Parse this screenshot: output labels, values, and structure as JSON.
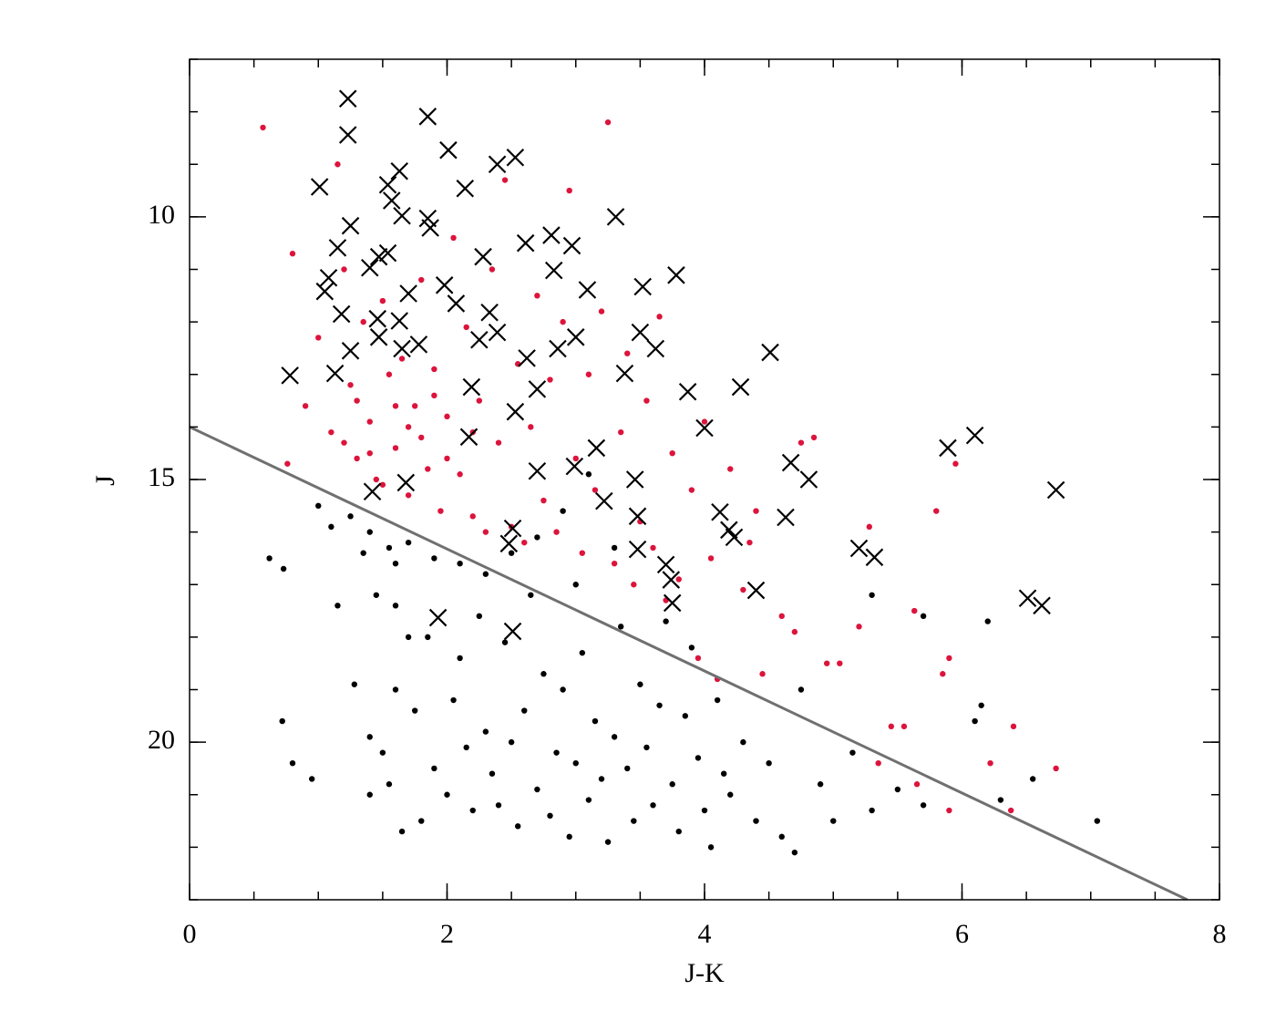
{
  "chart_data": {
    "type": "scatter",
    "xlabel": "J-K",
    "ylabel": "J",
    "xlim": [
      0,
      8
    ],
    "ylim": [
      23,
      7
    ],
    "xticks": [
      0,
      2,
      4,
      6,
      8
    ],
    "yticks": [
      10,
      15,
      20
    ],
    "xminor": 4,
    "yminor": 5,
    "series": [
      {
        "color": "#000000",
        "marker": "dot",
        "x": [
          0.62,
          0.73,
          0.72,
          0.8,
          0.95,
          1.15,
          1.28,
          1.0,
          1.1,
          1.25,
          1.4,
          1.55,
          1.7,
          1.9,
          2.1,
          2.3,
          1.35,
          1.6,
          1.45,
          1.6,
          1.7,
          1.75,
          1.8,
          1.65,
          1.5,
          1.4,
          1.55,
          1.9,
          2.0,
          2.05,
          2.1,
          2.15,
          2.2,
          2.25,
          2.3,
          2.35,
          2.4,
          2.45,
          2.5,
          2.55,
          2.6,
          2.65,
          2.7,
          2.75,
          2.8,
          2.85,
          2.9,
          2.95,
          3.0,
          3.05,
          3.1,
          3.15,
          3.2,
          3.25,
          3.3,
          3.35,
          3.4,
          3.45,
          3.5,
          3.55,
          3.6,
          3.65,
          3.7,
          3.75,
          3.8,
          3.85,
          3.9,
          3.95,
          4.0,
          4.05,
          4.1,
          4.15,
          4.2,
          4.3,
          4.4,
          4.5,
          4.6,
          4.7,
          4.75,
          4.9,
          5.0,
          5.15,
          5.3,
          5.5,
          5.7,
          5.7,
          6.1,
          6.2,
          6.15,
          6.3,
          6.55,
          7.05,
          5.3,
          2.5,
          2.7,
          2.9,
          3.1,
          3.3,
          1.85,
          1.4,
          1.6,
          3.0
        ],
        "values": [
          16.5,
          16.7,
          19.6,
          20.4,
          20.7,
          17.4,
          18.9,
          15.5,
          15.9,
          15.7,
          16.0,
          16.3,
          16.2,
          16.5,
          16.6,
          16.8,
          16.4,
          16.6,
          17.2,
          17.4,
          18.0,
          19.4,
          21.5,
          21.7,
          20.2,
          19.9,
          20.8,
          20.5,
          21.0,
          19.2,
          18.4,
          20.1,
          21.3,
          17.6,
          19.8,
          20.6,
          21.2,
          18.1,
          20.0,
          21.6,
          19.4,
          17.2,
          20.9,
          18.7,
          21.4,
          20.2,
          19.0,
          21.8,
          20.4,
          18.3,
          21.1,
          19.6,
          20.7,
          21.9,
          19.9,
          17.8,
          20.5,
          21.5,
          18.9,
          20.1,
          21.2,
          19.3,
          17.7,
          20.8,
          21.7,
          19.5,
          18.2,
          20.3,
          21.3,
          22.0,
          19.2,
          20.6,
          21.0,
          20.0,
          21.5,
          20.4,
          21.8,
          22.1,
          19.0,
          20.8,
          21.5,
          20.2,
          21.3,
          20.9,
          17.6,
          21.2,
          19.6,
          17.7,
          19.3,
          21.1,
          20.7,
          21.5,
          17.2,
          16.4,
          16.1,
          15.6,
          14.9,
          16.3,
          18.0,
          21.0,
          19.0,
          17.0
        ]
      },
      {
        "color": "#dc143c",
        "marker": "dot",
        "x": [
          0.57,
          0.8,
          0.76,
          0.9,
          1.0,
          1.1,
          1.15,
          1.2,
          1.25,
          1.3,
          1.35,
          1.4,
          1.45,
          1.5,
          1.55,
          1.6,
          1.65,
          1.7,
          1.75,
          1.8,
          1.85,
          1.9,
          1.95,
          2.0,
          2.05,
          2.1,
          2.15,
          2.2,
          2.25,
          2.3,
          2.35,
          2.4,
          2.45,
          2.5,
          2.55,
          2.6,
          2.65,
          2.7,
          2.75,
          2.8,
          2.85,
          2.9,
          2.95,
          3.0,
          3.05,
          3.1,
          3.15,
          3.2,
          3.25,
          3.3,
          3.35,
          3.4,
          3.45,
          3.5,
          3.55,
          3.6,
          3.65,
          3.7,
          3.75,
          3.8,
          3.9,
          3.95,
          4.0,
          4.05,
          4.1,
          4.2,
          4.3,
          4.35,
          4.4,
          4.45,
          4.6,
          4.7,
          4.75,
          4.85,
          4.95,
          5.05,
          5.2,
          5.28,
          5.35,
          5.45,
          5.55,
          5.65,
          5.63,
          5.8,
          5.85,
          5.9,
          5.95,
          5.9,
          6.22,
          6.38,
          6.4,
          6.73,
          1.2,
          1.4,
          1.6,
          1.8,
          2.0,
          1.3,
          1.5,
          1.7,
          1.9,
          2.2
        ],
        "values": [
          8.3,
          10.7,
          14.7,
          13.6,
          12.3,
          14.1,
          9.0,
          11.0,
          13.2,
          14.6,
          12.0,
          13.9,
          15.0,
          11.6,
          13.0,
          14.4,
          12.7,
          15.3,
          13.6,
          11.2,
          14.8,
          12.9,
          15.6,
          13.8,
          10.4,
          14.9,
          12.1,
          15.7,
          13.5,
          16.0,
          11.0,
          14.3,
          9.3,
          15.9,
          12.8,
          16.2,
          14.0,
          11.5,
          15.4,
          13.1,
          16.0,
          12.0,
          9.5,
          14.6,
          16.4,
          13.0,
          15.2,
          11.8,
          8.2,
          16.6,
          14.1,
          12.6,
          17.0,
          15.8,
          13.5,
          16.3,
          11.9,
          17.3,
          14.5,
          16.9,
          15.2,
          18.4,
          13.9,
          16.5,
          18.8,
          14.8,
          17.1,
          16.2,
          15.6,
          18.7,
          17.6,
          17.9,
          14.3,
          14.2,
          18.5,
          18.5,
          17.8,
          15.9,
          20.4,
          19.7,
          19.7,
          20.8,
          17.5,
          15.6,
          18.7,
          18.4,
          14.7,
          21.3,
          20.4,
          21.3,
          19.7,
          20.5,
          14.3,
          14.5,
          13.6,
          14.2,
          14.6,
          13.5,
          15.1,
          14.0,
          13.4,
          14.1
        ]
      },
      {
        "color": "#000000",
        "marker": "x",
        "x": [
          1.23,
          1.23,
          1.85,
          2.01,
          2.39,
          2.53,
          1.01,
          1.54,
          1.63,
          1.57,
          1.65,
          2.14,
          1.25,
          1.85,
          1.87,
          3.31,
          2.61,
          2.81,
          2.97,
          2.28,
          1.47,
          1.54,
          1.15,
          1.08,
          1.05,
          1.4,
          1.98,
          2.07,
          2.83,
          3.09,
          3.78,
          3.52,
          1.7,
          1.18,
          1.46,
          1.63,
          2.33,
          2.39,
          2.25,
          1.47,
          1.65,
          1.78,
          1.25,
          3.5,
          3.62,
          3.0,
          2.86,
          2.62,
          4.51,
          0.78,
          1.13,
          3.38,
          2.19,
          2.7,
          3.87,
          4.28,
          2.53,
          4.0,
          2.17,
          5.89,
          6.1,
          3.16,
          4.67,
          4.81,
          6.73,
          2.7,
          2.99,
          3.46,
          3.22,
          4.12,
          3.48,
          4.63,
          1.42,
          1.68,
          2.51,
          2.48,
          4.23,
          4.19,
          3.48,
          5.2,
          5.32,
          3.7,
          3.74,
          4.4,
          3.75,
          6.51,
          6.62,
          1.93,
          2.51
        ],
        "values": [
          7.75,
          8.44,
          8.09,
          8.73,
          9.0,
          8.87,
          9.43,
          9.39,
          9.13,
          9.69,
          9.98,
          9.46,
          10.17,
          10.03,
          10.21,
          10.0,
          10.5,
          10.35,
          10.55,
          10.76,
          10.76,
          10.69,
          10.59,
          11.16,
          11.42,
          10.97,
          11.3,
          11.65,
          11.02,
          11.39,
          11.11,
          11.33,
          11.46,
          11.85,
          11.94,
          11.98,
          11.82,
          12.2,
          12.34,
          12.29,
          12.51,
          12.43,
          12.55,
          12.2,
          12.51,
          12.29,
          12.51,
          12.69,
          12.58,
          13.02,
          12.98,
          12.98,
          13.24,
          13.28,
          13.33,
          13.24,
          13.71,
          14.02,
          14.19,
          14.4,
          14.16,
          14.4,
          14.68,
          15.0,
          15.2,
          14.84,
          14.75,
          15.0,
          15.41,
          15.62,
          15.7,
          15.72,
          15.23,
          15.06,
          15.93,
          16.22,
          16.1,
          15.96,
          16.33,
          16.31,
          16.48,
          16.62,
          16.91,
          17.11,
          17.35,
          17.26,
          17.4,
          17.63,
          17.89
        ]
      }
    ],
    "lines": [
      {
        "x": [
          0,
          7.75
        ],
        "values": [
          14,
          23
        ],
        "color": "#707070"
      }
    ]
  }
}
